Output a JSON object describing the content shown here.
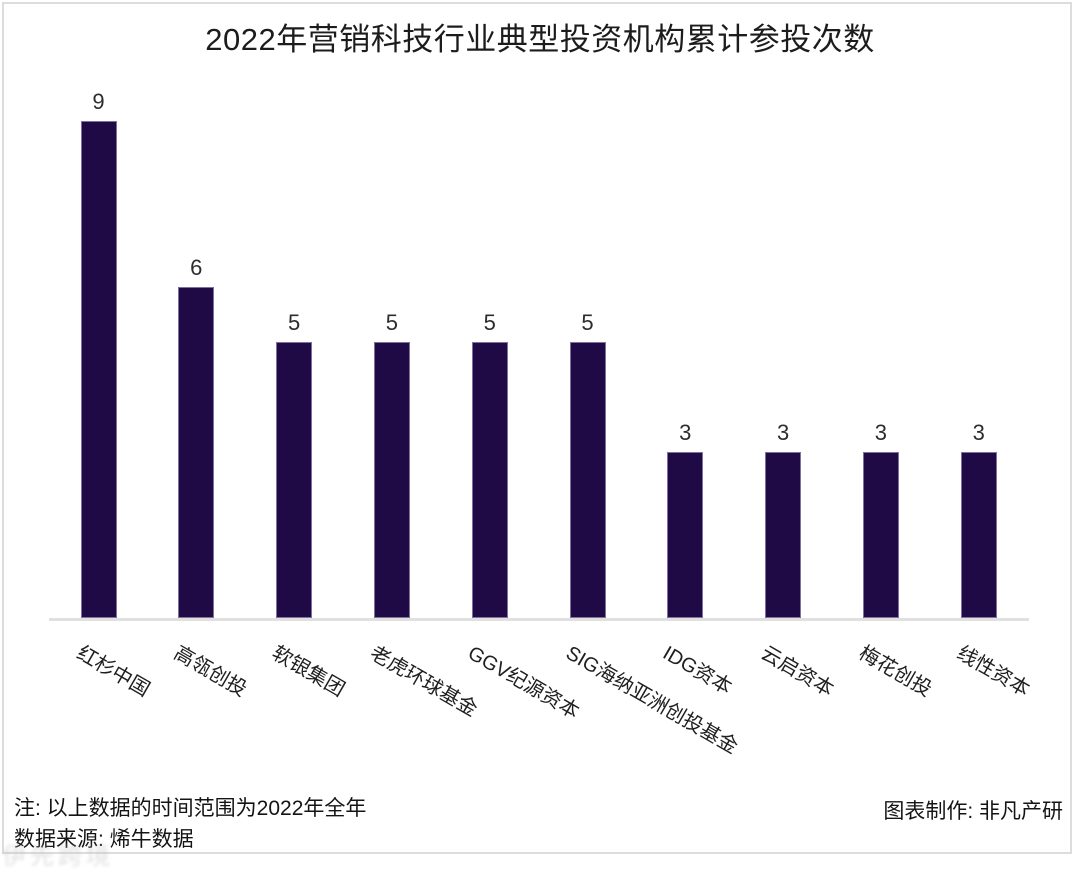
{
  "chart_data": {
    "type": "bar",
    "title": "2022年营销科技行业典型投资机构累计参投次数",
    "categories": [
      "红杉中国",
      "高瓴创投",
      "软银集团",
      "老虎环球基金",
      "GGV纪源资本",
      "SIG海纳亚洲创投基金",
      "IDG资本",
      "云启资本",
      "梅花创投",
      "线性资本"
    ],
    "values": [
      9,
      6,
      5,
      5,
      5,
      5,
      3,
      3,
      3,
      3
    ],
    "xlabel": "",
    "ylabel": "",
    "ylim": [
      0,
      9
    ],
    "grid": false,
    "legend_position": "none",
    "y_axis_visible": false,
    "value_labels_shown": true,
    "bar_color": "#1f0a46",
    "value_label_color": "#2d2d2d",
    "axis_line_color": "#e0e0e0"
  },
  "footer": {
    "note_line1": "注: 以上数据的时间范围为2022年全年",
    "note_line2": "数据来源: 烯牛数据",
    "credit": "图表制作: 非凡产研"
  },
  "watermark": "伊先跨境"
}
